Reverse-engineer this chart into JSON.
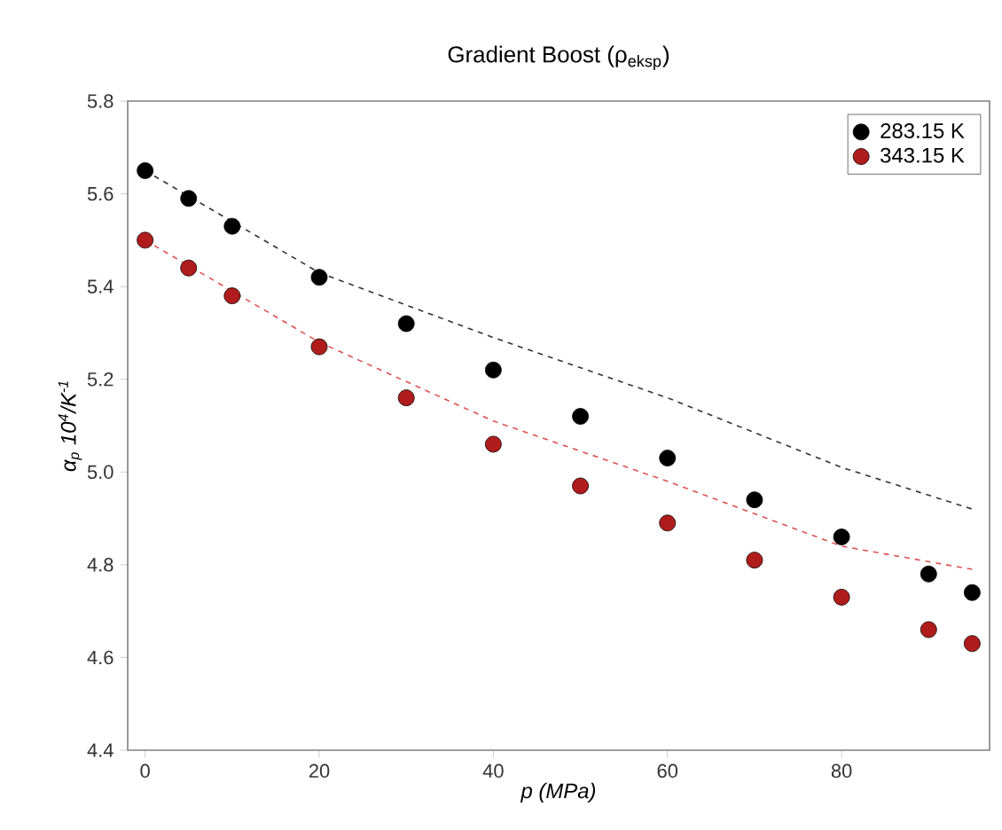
{
  "chart_data": {
    "type": "scatter",
    "title": "Gradient Boost (ρ$_{eksp}$)",
    "xlabel": "p (MPa)",
    "ylabel": "α$_{p}$ 10$^{4}$/K$^{-1}$",
    "xlim": [
      -2,
      97
    ],
    "ylim": [
      4.4,
      5.8
    ],
    "xticks": [
      0,
      20,
      40,
      60,
      80
    ],
    "yticks": [
      4.4,
      4.6,
      4.8,
      {
        "value": 5,
        "label": "5.0"
      },
      5.2,
      5.4,
      5.6,
      5.8
    ],
    "legend": "top right",
    "grid": false,
    "series": [
      {
        "name": "283.15 K",
        "color": "#000000",
        "marker": "circle",
        "x": [
          0,
          5,
          10,
          20,
          30,
          40,
          50,
          60,
          70,
          80,
          90,
          95
        ],
        "values": [
          5.65,
          5.59,
          5.53,
          5.42,
          5.32,
          5.22,
          5.12,
          5.03,
          4.94,
          4.86,
          4.78,
          4.74
        ]
      },
      {
        "name": "343.15 K",
        "color": "#b01c1c",
        "marker": "circle",
        "x": [
          0,
          5,
          10,
          20,
          30,
          40,
          50,
          60,
          70,
          80,
          90,
          95
        ],
        "values": [
          5.5,
          5.44,
          5.38,
          5.27,
          5.16,
          5.06,
          4.97,
          4.89,
          4.81,
          4.73,
          4.66,
          4.63
        ]
      },
      {
        "type": "line",
        "line_style": "dashed",
        "marker": "none",
        "color": "#333333",
        "x": [
          0,
          20,
          40,
          60,
          80,
          95
        ],
        "values": [
          5.65,
          5.43,
          5.29,
          5.16,
          5.01,
          4.92
        ]
      },
      {
        "type": "line",
        "line_style": "dashed",
        "marker": "none",
        "color": "#e05050",
        "x": [
          0,
          20,
          40,
          60,
          80,
          95
        ],
        "values": [
          5.5,
          5.28,
          5.11,
          4.98,
          4.84,
          4.79
        ]
      }
    ]
  }
}
